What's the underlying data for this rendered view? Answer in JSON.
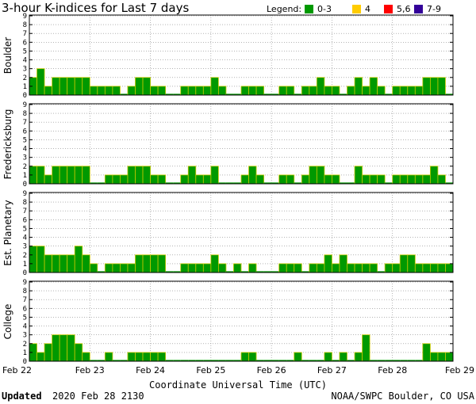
{
  "chart_data": {
    "type": "bar",
    "title": "3-hour K-indices for Last 7 days",
    "legend": {
      "label": "Legend:",
      "placement": "top-right",
      "entries": [
        {
          "label": "0-3",
          "color": "#009900"
        },
        {
          "label": "4",
          "color": "#ffcc00"
        },
        {
          "label": "5,6",
          "color": "#ff0000"
        },
        {
          "label": "7-9",
          "color": "#330099"
        }
      ]
    },
    "xlabel": "Coordinate Universal Time (UTC)",
    "x_ticks": [
      "Feb 22",
      "Feb 23",
      "Feb 24",
      "Feb 25",
      "Feb 26",
      "Feb 27",
      "Feb 28",
      "Feb 29"
    ],
    "ylim": [
      0,
      9
    ],
    "y_ticks": [
      "0",
      "1",
      "2",
      "3",
      "4",
      "5",
      "6",
      "7",
      "8",
      "9"
    ],
    "interval_hours": 3,
    "panels": [
      {
        "name": "Boulder",
        "values": [
          2,
          3,
          1,
          2,
          2,
          2,
          2,
          2,
          1,
          1,
          1,
          1,
          0,
          1,
          2,
          2,
          1,
          1,
          0,
          0,
          1,
          1,
          1,
          1,
          2,
          1,
          0,
          0,
          1,
          1,
          1,
          0,
          0,
          1,
          1,
          0,
          1,
          1,
          2,
          1,
          1,
          0,
          1,
          2,
          1,
          2,
          1,
          0,
          1,
          1,
          1,
          1,
          2,
          2,
          2,
          0
        ]
      },
      {
        "name": "Fredericksburg",
        "values": [
          2,
          2,
          1,
          2,
          2,
          2,
          2,
          2,
          0,
          0,
          1,
          1,
          1,
          2,
          2,
          2,
          1,
          1,
          0,
          0,
          1,
          2,
          1,
          1,
          2,
          0,
          0,
          0,
          1,
          2,
          1,
          0,
          0,
          1,
          1,
          0,
          1,
          2,
          2,
          1,
          1,
          0,
          0,
          2,
          1,
          1,
          1,
          0,
          1,
          1,
          1,
          1,
          1,
          2,
          1,
          0
        ]
      },
      {
        "name": "Est. Planetary",
        "values": [
          3,
          3,
          2,
          2,
          2,
          2,
          3,
          2,
          1,
          0,
          1,
          1,
          1,
          1,
          2,
          2,
          2,
          2,
          0,
          0,
          1,
          1,
          1,
          1,
          2,
          1,
          0,
          1,
          0,
          1,
          0,
          0,
          0,
          1,
          1,
          1,
          0,
          1,
          1,
          2,
          1,
          2,
          1,
          1,
          1,
          1,
          0,
          1,
          1,
          2,
          2,
          1,
          1,
          1,
          1,
          1
        ]
      },
      {
        "name": "College",
        "values": [
          2,
          1,
          2,
          3,
          3,
          3,
          2,
          1,
          0,
          0,
          1,
          0,
          0,
          1,
          1,
          1,
          1,
          1,
          0,
          0,
          0,
          0,
          0,
          0,
          0,
          0,
          0,
          0,
          1,
          1,
          0,
          0,
          0,
          0,
          0,
          1,
          0,
          0,
          0,
          1,
          0,
          1,
          0,
          1,
          3,
          0,
          0,
          0,
          0,
          0,
          0,
          0,
          2,
          1,
          1,
          1
        ]
      }
    ]
  },
  "footer": {
    "updated_label": "Updated",
    "updated_time": "2020 Feb 28 2130",
    "source": "NOAA/SWPC Boulder, CO USA"
  }
}
